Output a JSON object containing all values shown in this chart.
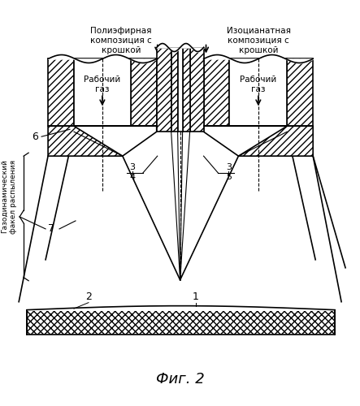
{
  "title": "Фиг. 2",
  "label_left_title": "Полиэфирная\nкомпозиция с\nкрошкой",
  "label_right_title": "Изоцианатная\nкомпозиция с\nкрошкой",
  "label_gas_left": "Рабочий\nгаз",
  "label_gas_right": "Рабочий\nгаз",
  "label_side": "Газодинамический\nфакел распыления",
  "num_6": "6",
  "num_7": "7",
  "num_3_4": "3\n4",
  "num_3_5": "3\n5",
  "num_1": "1",
  "num_2": "2",
  "bg_color": "#ffffff",
  "line_color": "#000000",
  "figsize": [
    4.43,
    5.0
  ],
  "dpi": 100
}
